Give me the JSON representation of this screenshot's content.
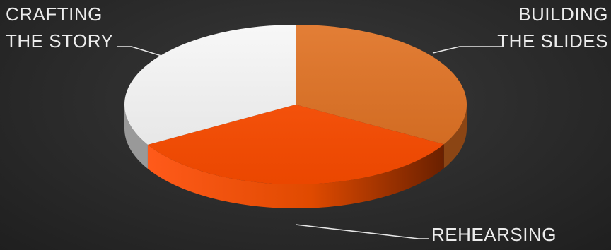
{
  "chart_data": {
    "type": "pie",
    "style": "3d",
    "slices": [
      {
        "label_lines": [
          "BUILDING",
          "THE SLIDES"
        ],
        "value": 33.3,
        "color": "#e07020"
      },
      {
        "label_lines": [
          "REHEARSING"
        ],
        "value": 33.3,
        "color": "#ff4d00"
      },
      {
        "label_lines": [
          "CRAFTING",
          "THE STORY"
        ],
        "value": 33.4,
        "color": "#f7f7f7"
      }
    ]
  }
}
